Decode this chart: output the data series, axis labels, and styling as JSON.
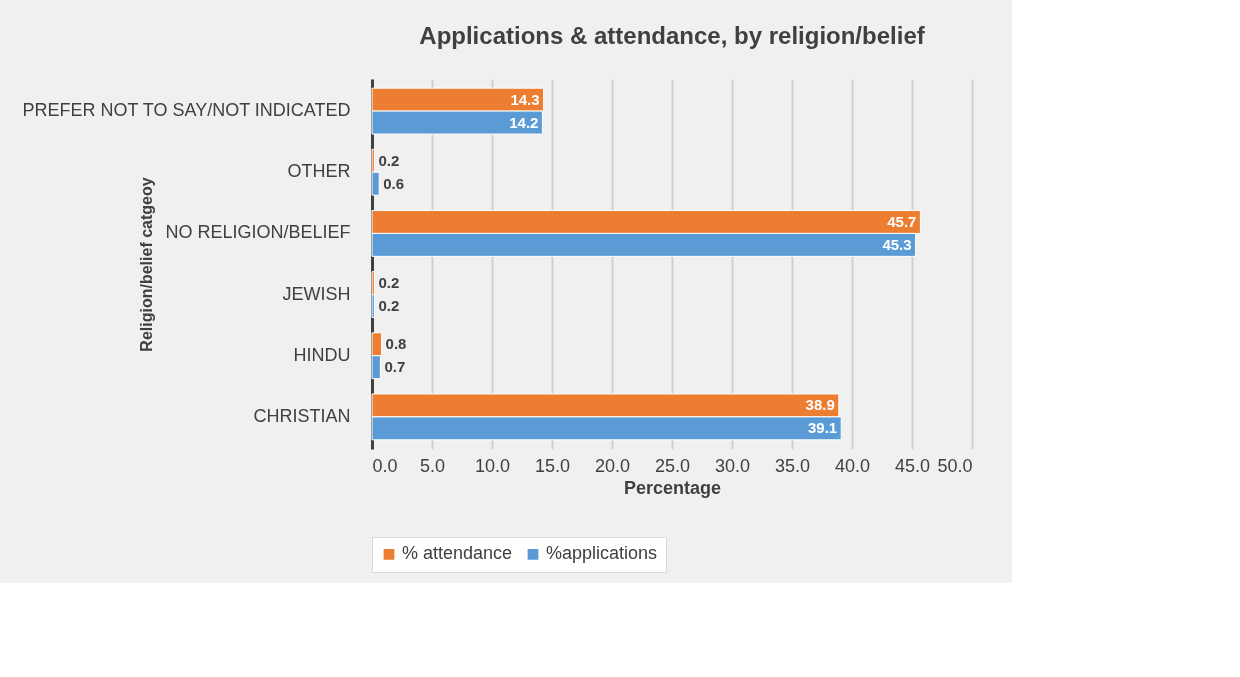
{
  "chart_data": {
    "type": "bar",
    "orientation": "horizontal",
    "title": "Applications & attendance, by religion/belief",
    "xlabel": "Percentage",
    "ylabel": "Religion/belief catgeoy",
    "categories": [
      "PREFER NOT TO SAY/NOT INDICATED",
      "OTHER",
      "NO RELIGION/BELIEF",
      "JEWISH",
      "HINDU",
      "CHRISTIAN"
    ],
    "series": [
      {
        "name": "% attendance",
        "color": "#ed7d31",
        "values": [
          14.3,
          0.2,
          45.7,
          0.2,
          0.8,
          38.9
        ]
      },
      {
        "name": "%applications",
        "color": "#5b9bd5",
        "values": [
          14.2,
          0.6,
          45.3,
          0.2,
          0.7,
          39.1
        ]
      }
    ],
    "xlim": [
      0,
      50
    ],
    "xticks": [
      {
        "value": 0,
        "label": "0.0"
      },
      {
        "value": 5,
        "label": "5.0"
      },
      {
        "value": 10,
        "label": "10.0"
      },
      {
        "value": 15,
        "label": "15.0"
      },
      {
        "value": 20,
        "label": "20.0"
      },
      {
        "value": 25,
        "label": "25.0"
      },
      {
        "value": 30,
        "label": "30.0"
      },
      {
        "value": 35,
        "label": "35.0"
      },
      {
        "value": 40,
        "label": "40.0"
      },
      {
        "value": 45,
        "label": "45.0"
      },
      {
        "value": 50,
        "label": "50.0"
      }
    ],
    "grid": "x",
    "legend": "bottom",
    "data_labels": true
  }
}
